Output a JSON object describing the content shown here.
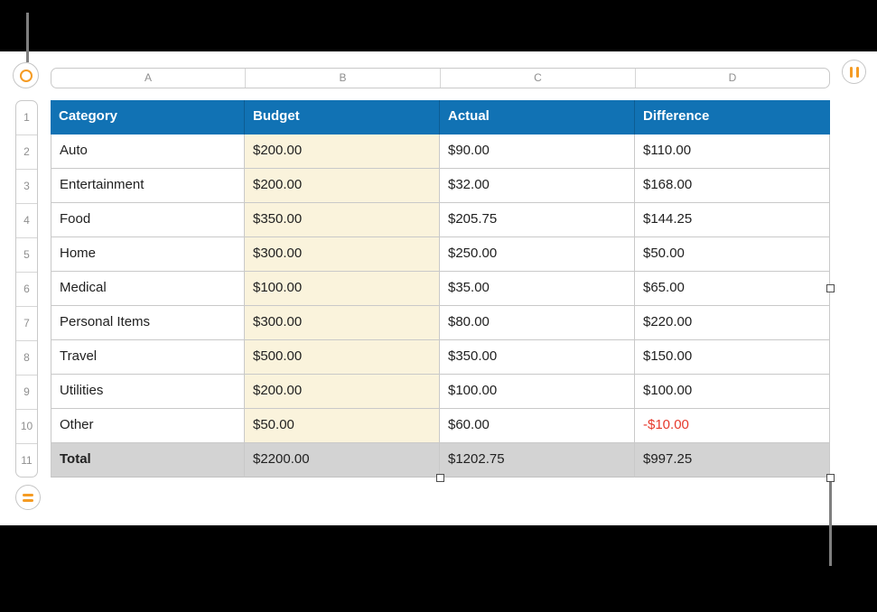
{
  "colors": {
    "header_bg": "#1172b4",
    "header_text": "#ffffff",
    "budget_column_bg": "#faf3dc",
    "total_row_bg": "#d3d3d3",
    "grid_line": "#c9c9c9",
    "body_text": "#212121",
    "negative_text": "#e6392c",
    "reference_text": "#8f8f8f",
    "handle_accent": "#f59b23",
    "leader_line": "#7f7f7f",
    "letterbox": "#000000"
  },
  "sheet": {
    "column_refs": [
      "A",
      "B",
      "C",
      "D"
    ],
    "row_refs": [
      "1",
      "2",
      "3",
      "4",
      "5",
      "6",
      "7",
      "8",
      "9",
      "10",
      "11"
    ]
  },
  "table": {
    "headers": {
      "category": "Category",
      "budget": "Budget",
      "actual": "Actual",
      "difference": "Difference"
    },
    "rows": [
      {
        "category": "Auto",
        "budget": "$200.00",
        "actual": "$90.00",
        "difference": "$110.00"
      },
      {
        "category": "Entertainment",
        "budget": "$200.00",
        "actual": "$32.00",
        "difference": "$168.00"
      },
      {
        "category": "Food",
        "budget": "$350.00",
        "actual": "$205.75",
        "difference": "$144.25"
      },
      {
        "category": "Home",
        "budget": "$300.00",
        "actual": "$250.00",
        "difference": "$50.00"
      },
      {
        "category": "Medical",
        "budget": "$100.00",
        "actual": "$35.00",
        "difference": "$65.00"
      },
      {
        "category": "Personal Items",
        "budget": "$300.00",
        "actual": "$80.00",
        "difference": "$220.00"
      },
      {
        "category": "Travel",
        "budget": "$500.00",
        "actual": "$350.00",
        "difference": "$150.00"
      },
      {
        "category": "Utilities",
        "budget": "$200.00",
        "actual": "$100.00",
        "difference": "$100.00"
      },
      {
        "category": "Other",
        "budget": "$50.00",
        "actual": "$60.00",
        "difference": "-$10.00"
      }
    ],
    "total_row": {
      "category": "Total",
      "budget": "$2200.00",
      "actual": "$1202.75",
      "difference": "$997.25"
    }
  },
  "handles": {
    "table_handle_icon": "circle-ring-icon",
    "add_column_icon": "double-vertical-bars-icon",
    "add_row_icon": "double-horizontal-bars-icon",
    "resize_squares": [
      "mid-right",
      "bottom-center",
      "bottom-right"
    ]
  }
}
